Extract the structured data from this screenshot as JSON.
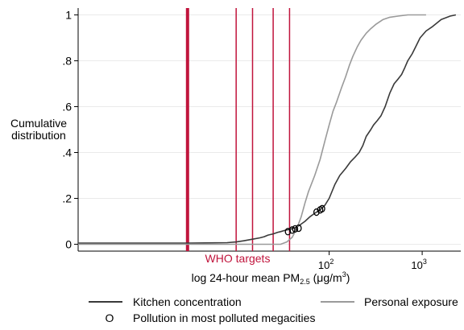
{
  "chart_data": {
    "type": "line",
    "title": "",
    "xlabel": "log 24-hour mean PM2.5 (μg/m3)",
    "xlabel_parts": {
      "prefix": "log 24-hour mean PM",
      "sub": "2.5",
      "mid": " (μg/m",
      "sup": "3",
      "suffix": ")"
    },
    "ylabel": [
      "Cumulative",
      "distribution"
    ],
    "x_scale": "log",
    "xlim": [
      0.2,
      2600
    ],
    "ylim": [
      -0.03,
      1.03
    ],
    "y_ticks": [
      {
        "value": 0,
        "label": "0"
      },
      {
        "value": 0.2,
        "label": ".2"
      },
      {
        "value": 0.4,
        "label": ".4"
      },
      {
        "value": 0.6,
        "label": ".6"
      },
      {
        "value": 0.8,
        "label": ".8"
      },
      {
        "value": 1,
        "label": "1"
      }
    ],
    "x_ticks": [
      {
        "value": 100,
        "base": "10",
        "exp": "2"
      },
      {
        "value": 1000,
        "base": "10",
        "exp": "3"
      }
    ],
    "grid": true,
    "legend_position": "bottom",
    "who_targets": {
      "label": "WHO targets",
      "color": "#c0143c",
      "values": [
        3,
        10,
        15,
        25,
        37.5
      ],
      "bold_value": 3
    },
    "series": [
      {
        "name": "Kitchen concentration",
        "color": "#3a3a3a",
        "x": [
          0.2,
          3,
          8,
          10,
          12,
          15,
          18,
          20,
          22,
          25,
          28,
          30,
          33,
          38,
          45,
          55,
          62,
          70,
          80,
          90,
          100,
          115,
          130,
          150,
          170,
          190,
          210,
          230,
          250,
          280,
          300,
          330,
          360,
          400,
          450,
          500,
          550,
          600,
          650,
          700,
          780,
          850,
          950,
          1100,
          1300,
          1600,
          2000,
          2300
        ],
        "y": [
          0.005,
          0.005,
          0.007,
          0.01,
          0.015,
          0.022,
          0.028,
          0.033,
          0.04,
          0.045,
          0.052,
          0.055,
          0.06,
          0.065,
          0.075,
          0.1,
          0.12,
          0.135,
          0.15,
          0.17,
          0.2,
          0.26,
          0.3,
          0.33,
          0.36,
          0.38,
          0.4,
          0.43,
          0.47,
          0.5,
          0.52,
          0.54,
          0.56,
          0.6,
          0.66,
          0.7,
          0.72,
          0.74,
          0.77,
          0.8,
          0.83,
          0.86,
          0.9,
          0.93,
          0.95,
          0.98,
          0.995,
          1
        ]
      },
      {
        "name": "Personal exposure",
        "color": "#9a9a9a",
        "x": [
          0.2,
          30,
          35,
          40,
          45,
          50,
          55,
          60,
          70,
          80,
          90,
          100,
          110,
          120,
          135,
          150,
          165,
          180,
          200,
          220,
          250,
          280,
          320,
          380,
          450,
          550,
          700,
          900,
          1100
        ],
        "y": [
          0,
          0,
          0.01,
          0.03,
          0.07,
          0.12,
          0.18,
          0.23,
          0.3,
          0.37,
          0.45,
          0.52,
          0.58,
          0.62,
          0.68,
          0.73,
          0.78,
          0.82,
          0.86,
          0.89,
          0.92,
          0.94,
          0.96,
          0.98,
          0.99,
          0.995,
          1,
          1,
          1
        ]
      }
    ],
    "megacities": {
      "name": "Pollution in most polluted megacities",
      "marker": "O",
      "points": [
        {
          "x": 36,
          "y": 0.055
        },
        {
          "x": 40,
          "y": 0.062
        },
        {
          "x": 43,
          "y": 0.067
        },
        {
          "x": 47,
          "y": 0.07
        },
        {
          "x": 73,
          "y": 0.14
        },
        {
          "x": 80,
          "y": 0.15
        },
        {
          "x": 84,
          "y": 0.155
        }
      ]
    }
  }
}
